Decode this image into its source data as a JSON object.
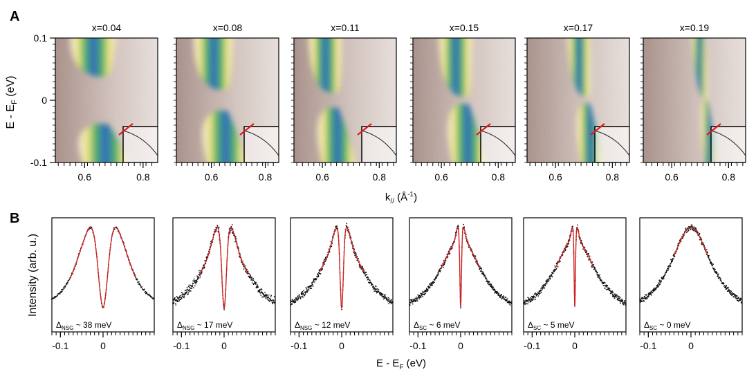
{
  "figure": {
    "panel_a_label": "A",
    "panel_b_label": "B"
  },
  "chart_data": [
    {
      "type": "heatmap",
      "panel": "A",
      "description_axes": true,
      "xlabel_main": "k",
      "xlabel_sub": "//",
      "xlabel_unit_prefix": " (Å",
      "xlabel_unit_exp": "-1",
      "xlabel_unit_suffix": ")",
      "ylabel_main": "E - E",
      "ylabel_sub": "F",
      "ylabel_unit": " (eV)",
      "ylim": [
        -0.1,
        0.1
      ],
      "yticks": [
        "0.1",
        "0",
        "-0.1"
      ],
      "ytick_values": [
        0.1,
        0,
        -0.1
      ],
      "xticks": [
        "0.6",
        "0.8"
      ],
      "xtick_values": [
        0.6,
        0.8
      ],
      "panels": [
        {
          "label": "x=0.04",
          "k_range": [
            0.5,
            0.85
          ],
          "band_k": 0.66,
          "gap": 0.038,
          "style": "broad"
        },
        {
          "label": "x=0.08",
          "k_range": [
            0.47,
            0.85
          ],
          "band_k": 0.64,
          "gap": 0.017,
          "style": "noisy"
        },
        {
          "label": "x=0.11",
          "k_range": [
            0.5,
            0.86
          ],
          "band_k": 0.64,
          "gap": 0.012,
          "style": "medium"
        },
        {
          "label": "x=0.15",
          "k_range": [
            0.5,
            0.86
          ],
          "band_k": 0.68,
          "gap": 0.006,
          "style": "medium"
        },
        {
          "label": "x=0.17",
          "k_range": [
            0.5,
            0.86
          ],
          "band_k": 0.71,
          "gap": 0.005,
          "style": "narrow"
        },
        {
          "label": "x=0.19",
          "k_range": [
            0.5,
            0.86
          ],
          "band_k": 0.72,
          "gap": 0.0,
          "style": "sharp"
        }
      ]
    },
    {
      "type": "line",
      "panel": "B",
      "xlabel_main": "E - E",
      "xlabel_sub": "F",
      "xlabel_unit": " (eV)",
      "ylabel": "Intensity (arb. u.)",
      "xlim": [
        -0.12,
        0.12
      ],
      "xticks": [
        "-0.1",
        "0"
      ],
      "xtick_values": [
        -0.1,
        0
      ],
      "fit_color": "#cc2222",
      "data_color": "#111111",
      "panels": [
        {
          "gap_sym": "Δ",
          "gap_sub": "NSG",
          "gap_text": " ~ 38 meV",
          "gap_meV": 38,
          "noise": 0.02
        },
        {
          "gap_sym": "Δ",
          "gap_sub": "NSG",
          "gap_text": " ~ 17 meV",
          "gap_meV": 17,
          "noise": 0.06
        },
        {
          "gap_sym": "Δ",
          "gap_sub": "NSG",
          "gap_text": " ~ 12 meV",
          "gap_meV": 12,
          "noise": 0.05
        },
        {
          "gap_sym": "Δ",
          "gap_sub": "SC",
          "gap_text": " ~ 6 meV",
          "gap_meV": 6,
          "noise": 0.04
        },
        {
          "gap_sym": "Δ",
          "gap_sub": "SC",
          "gap_text": " ~ 5 meV",
          "gap_meV": 5,
          "noise": 0.05
        },
        {
          "gap_sym": "Δ",
          "gap_sub": "SC",
          "gap_text": " ~ 0 meV",
          "gap_meV": 0,
          "noise": 0.04
        }
      ]
    }
  ]
}
